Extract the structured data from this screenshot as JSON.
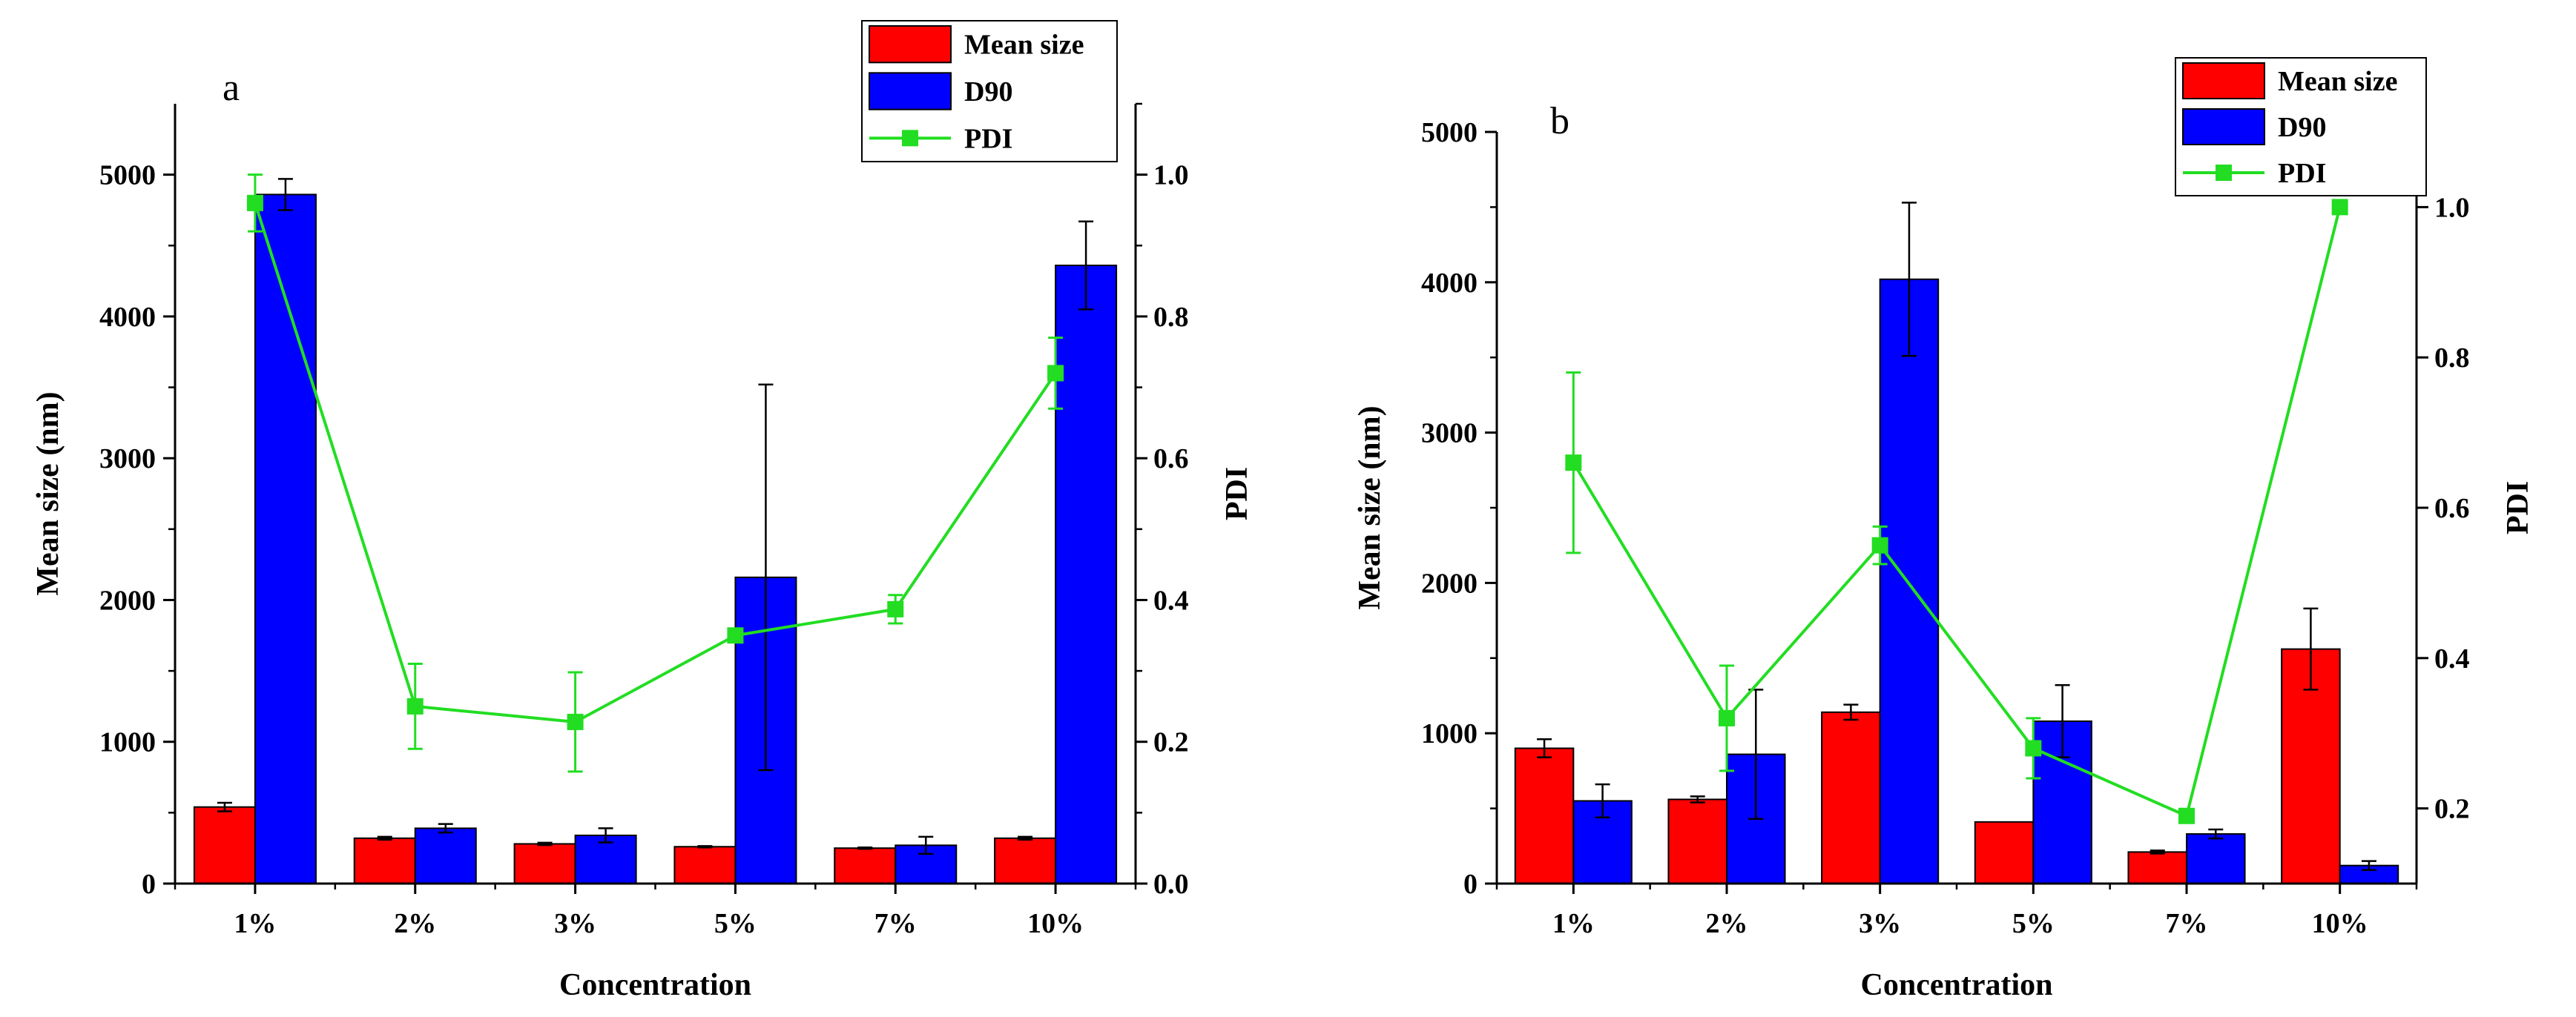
{
  "colors": {
    "mean_size": "#ff0000",
    "d90": "#0000ff",
    "pdi": "#22dd22",
    "axis": "#000000"
  },
  "legend_labels": [
    "Mean size",
    "D90",
    "PDI"
  ],
  "chart_data": [
    {
      "type": "bar",
      "panel_label": "a",
      "categories": [
        "1%",
        "2%",
        "3%",
        "5%",
        "7%",
        "10%"
      ],
      "xlabel": "Concentration",
      "ylabel": "Mean size (nm)",
      "y2label": "PDI",
      "ylim": [
        0,
        5500
      ],
      "y2lim": [
        0,
        1.1
      ],
      "yticks": [
        0,
        1000,
        2000,
        3000,
        4000,
        5000
      ],
      "y2ticks": [
        "0.0",
        "0.2",
        "0.4",
        "0.6",
        "0.8",
        "1.0"
      ],
      "legend_position": "top-right",
      "series": [
        {
          "name": "Mean size",
          "kind": "bar",
          "axis": "left",
          "values": [
            540,
            320,
            280,
            260,
            250,
            320
          ],
          "errors": [
            30,
            10,
            8,
            5,
            5,
            10
          ]
        },
        {
          "name": "D90",
          "kind": "bar",
          "axis": "left",
          "values": [
            4860,
            390,
            340,
            2160,
            270,
            4360
          ],
          "errors": [
            110,
            30,
            50,
            1360,
            60,
            310
          ]
        },
        {
          "name": "PDI",
          "kind": "line",
          "axis": "right",
          "values": [
            0.96,
            0.25,
            0.228,
            0.35,
            0.387,
            0.72
          ],
          "errors": [
            0.04,
            0.06,
            0.07,
            0,
            0.02,
            0.05
          ]
        }
      ]
    },
    {
      "type": "bar",
      "panel_label": "b",
      "categories": [
        "1%",
        "2%",
        "3%",
        "5%",
        "7%",
        "10%"
      ],
      "xlabel": "Concentration",
      "ylabel": "Mean size (nm)",
      "y2label": "PDI",
      "ylim": [
        0,
        5000
      ],
      "y2lim": [
        0.1,
        1.1
      ],
      "yticks": [
        0,
        1000,
        2000,
        3000,
        4000,
        5000
      ],
      "y2ticks": [
        "0.2",
        "0.4",
        "0.6",
        "0.8",
        "1.0"
      ],
      "legend_position": "top-right",
      "series": [
        {
          "name": "Mean size",
          "kind": "bar",
          "axis": "left",
          "values": [
            900,
            560,
            1140,
            410,
            210,
            1560
          ],
          "errors": [
            60,
            20,
            50,
            0,
            10,
            270
          ]
        },
        {
          "name": "D90",
          "kind": "bar",
          "axis": "left",
          "values": [
            550,
            860,
            4020,
            1080,
            330,
            120
          ],
          "errors": [
            110,
            430,
            510,
            240,
            30,
            30
          ]
        },
        {
          "name": "PDI",
          "kind": "line",
          "axis": "right",
          "values": [
            0.66,
            0.32,
            0.55,
            0.28,
            0.19,
            1.0
          ],
          "errors": [
            0.12,
            0.07,
            0.025,
            0.04,
            0,
            0
          ]
        }
      ]
    }
  ]
}
